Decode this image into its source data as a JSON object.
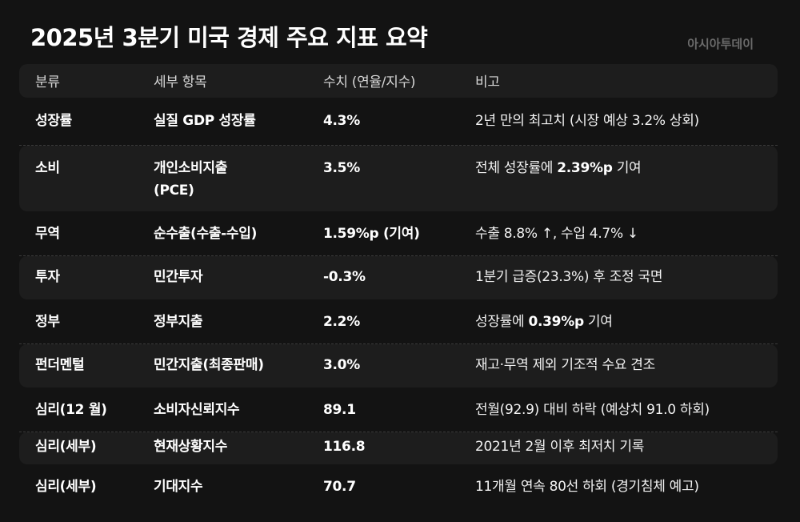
{
  "title": "2025년 3분기 미국 경제 주요 지표 요약",
  "source": "아시아투데이",
  "headers": [
    "분류",
    "세부 항목",
    "수치 (연율/지수)",
    "비고"
  ],
  "rows": [
    {
      "category": "성장률",
      "item": "실질 GDP 성장률",
      "value": "4.3%",
      "note_pre": "2년 만의 최고치 (시장 예상 3.2% 상회)",
      "note_bold": "",
      "note_post": ""
    },
    {
      "category": "소비",
      "item_line1": "개인소비지출",
      "item_line2": "(PCE)",
      "value": "3.5%",
      "note_pre": "전체 성장률에 ",
      "note_bold": "2.39%p",
      "note_post": " 기여"
    },
    {
      "category": "무역",
      "item": "순수출(수출-수입)",
      "value": "1.59%p (기여)",
      "note_pre": "수출 8.8% ↑, 수입 4.7% ↓",
      "note_bold": "",
      "note_post": ""
    },
    {
      "category": "투자",
      "item": "민간투자",
      "value": "-0.3%",
      "note_pre": "1분기 급증(23.3%) 후 조정 국면",
      "note_bold": "",
      "note_post": ""
    },
    {
      "category": "정부",
      "item": "정부지출",
      "value": "2.2%",
      "note_pre": "성장률에 ",
      "note_bold": "0.39%p",
      "note_post": " 기여"
    },
    {
      "category": "펀더멘털",
      "item": "민간지출(최종판매)",
      "value": "3.0%",
      "note_pre": "재고·무역 제외 기조적 수요 견조",
      "note_bold": "",
      "note_post": ""
    },
    {
      "category": "심리(12 월)",
      "item": "소비자신뢰지수",
      "value": "89.1",
      "note_pre": "전월(92.9) 대비 하락 (예상치 91.0 하회)",
      "note_bold": "",
      "note_post": ""
    },
    {
      "category": "심리(세부)",
      "item": "현재상황지수",
      "value": "116.8",
      "note_pre": "2021년 2월 이후 최저치 기록",
      "note_bold": "",
      "note_post": ""
    },
    {
      "category": "심리(세부)",
      "item": "기대지수",
      "value": "70.7",
      "note_pre": "11개월 연속 80선 하회 (경기침체 예고)",
      "note_bold": "",
      "note_post": ""
    }
  ]
}
